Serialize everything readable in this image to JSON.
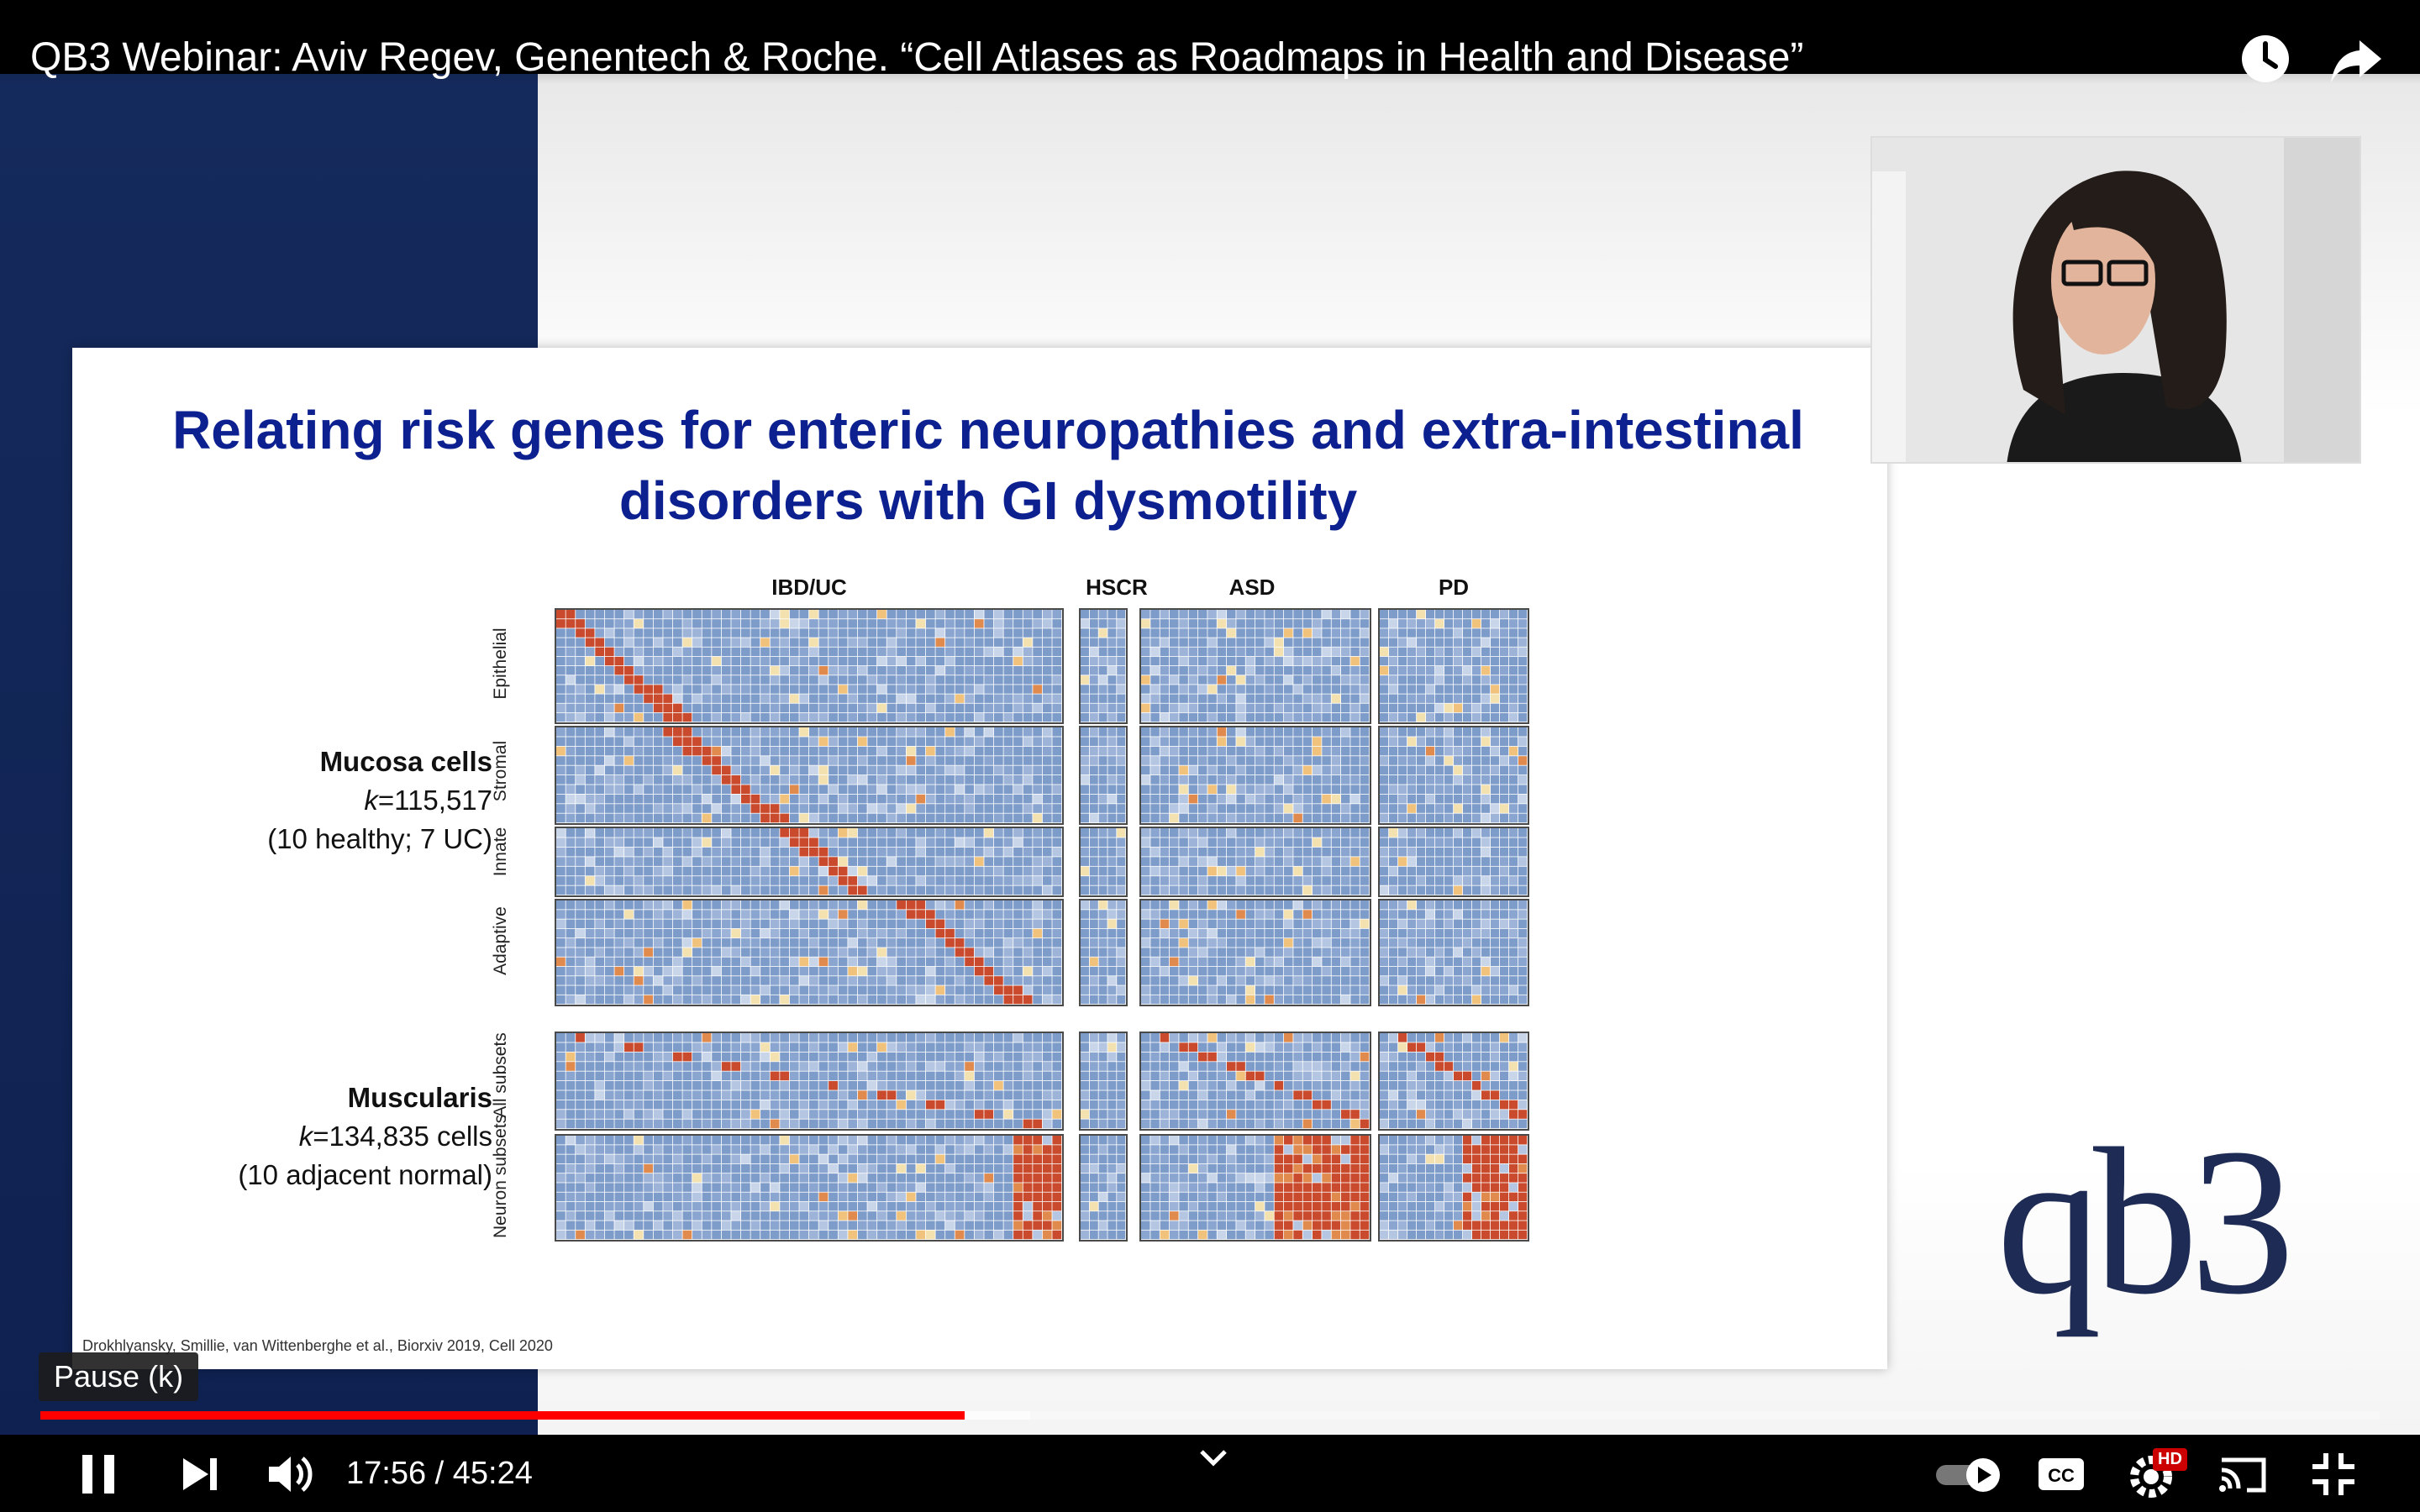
{
  "video": {
    "title": "QB3 Webinar: Aviv Regev, Genentech & Roche. “Cell Atlases as Roadmaps in Health and Disease”"
  },
  "slide": {
    "title": "Relating risk genes for enteric neuropathies and extra-intestinal disorders with GI dysmotility",
    "columns": [
      "IBD/UC",
      "HSCR",
      "ASD",
      "PD"
    ],
    "rows": [
      "Epithelial",
      "Stromal",
      "Innate",
      "Adaptive",
      "All subsets",
      "Neuron subsets"
    ],
    "mucosa": {
      "title": "Mucosa cells",
      "k_label": "k",
      "k_value": "=115,517",
      "detail": "(10 healthy; 7 UC)"
    },
    "muscularis": {
      "title": "Muscularis",
      "k_label": "k",
      "k_value": "=134,835 cells",
      "detail": "(10 adjacent normal)"
    },
    "citation": "Drokhlyansky, Smillie, van Wittenberghe et al., Biorxiv 2019, Cell 2020",
    "logo": "qb3"
  },
  "player": {
    "tooltip": "Pause (k)",
    "time": "17:56 / 45:24",
    "progress_fraction": 0.395,
    "buffered_fraction": 0.423,
    "icons": [
      "watch-later-icon",
      "share-icon",
      "pause-icon",
      "next-icon",
      "volume-icon",
      "chevron-down-icon",
      "autoplay-toggle-icon",
      "captions-icon",
      "settings-icon",
      "cast-icon",
      "exit-fullscreen-icon"
    ],
    "hd_badge": "HD",
    "cc_label": "CC",
    "colors": {
      "progress": "#ff0000",
      "heatmap_low": "#7e9cc9",
      "heatmap_high": "#c94a2c"
    }
  }
}
